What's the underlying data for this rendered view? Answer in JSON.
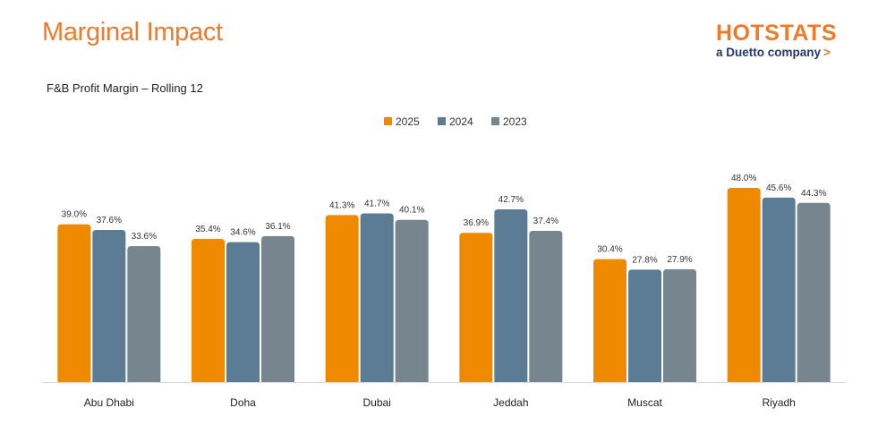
{
  "header": {
    "title": "Marginal Impact",
    "logo_word": "HOTSTATS",
    "logo_tagline": "a Duetto company",
    "logo_arrow": ">"
  },
  "colors": {
    "accent": "#EE7A2B",
    "series_2025": "#EF8A00",
    "series_2024": "#5B7C94",
    "series_2023": "#77858F",
    "tagline": "#23376B"
  },
  "chart_data": {
    "type": "bar",
    "title": "F&B Profit Margin –  Rolling 12",
    "xlabel": "",
    "ylabel": "",
    "ylim": [
      0,
      50
    ],
    "grid": false,
    "legend": "top-center",
    "categories": [
      "Abu Dhabi",
      "Doha",
      "Dubai",
      "Jeddah",
      "Muscat",
      "Riyadh"
    ],
    "series": [
      {
        "name": "2025",
        "color": "#EF8A00",
        "values": [
          39.0,
          35.4,
          41.3,
          36.9,
          30.4,
          48.0
        ],
        "labels": [
          "39.0%",
          "35.4%",
          "41.3%",
          "36.9%",
          "30.4%",
          "48.0%"
        ]
      },
      {
        "name": "2024",
        "color": "#5B7C94",
        "values": [
          37.6,
          34.6,
          41.7,
          42.7,
          27.8,
          45.6
        ],
        "labels": [
          "37.6%",
          "34.6%",
          "41.7%",
          "42.7%",
          "27.8%",
          "45.6%"
        ]
      },
      {
        "name": "2023",
        "color": "#77858F",
        "values": [
          33.6,
          36.1,
          40.1,
          37.4,
          27.9,
          44.3
        ],
        "labels": [
          "33.6%",
          "36.1%",
          "40.1%",
          "37.4%",
          "27.9%",
          "44.3%"
        ]
      }
    ]
  }
}
